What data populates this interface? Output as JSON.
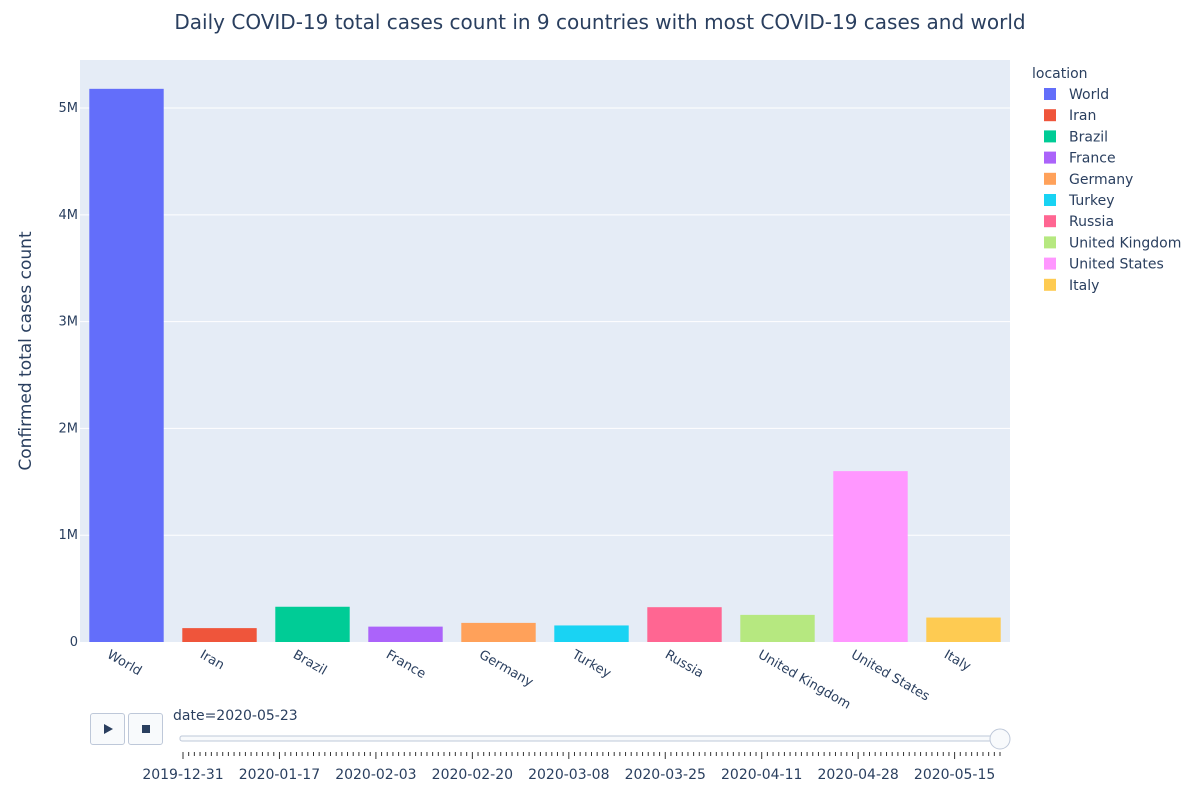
{
  "chart_data": {
    "type": "bar",
    "title": "Daily COVID-19 total cases count in 9 countries with most COVID-19 cases and world",
    "xlabel": "",
    "ylabel": "Confirmed total cases count",
    "categories": [
      "World",
      "Iran",
      "Brazil",
      "France",
      "Germany",
      "Turkey",
      "Russia",
      "United Kingdom",
      "United States",
      "Italy"
    ],
    "values": [
      5180000,
      130000,
      330000,
      144000,
      179000,
      155000,
      326000,
      254000,
      1600000,
      229000
    ],
    "colors": [
      "#636efa",
      "#EF553B",
      "#00cc96",
      "#ab63fa",
      "#FFA15A",
      "#19d3f3",
      "#FF6692",
      "#B6E880",
      "#FF97FF",
      "#FECB52"
    ],
    "ylim": [
      0,
      5450000
    ],
    "yticks": [
      0,
      1000000,
      2000000,
      3000000,
      4000000,
      5000000
    ],
    "ytick_labels": [
      "0",
      "1M",
      "2M",
      "3M",
      "4M",
      "5M"
    ],
    "grid": true,
    "legend": {
      "title": "location",
      "placement": "right",
      "entries": [
        "World",
        "Iran",
        "Brazil",
        "France",
        "Germany",
        "Turkey",
        "Russia",
        "United Kingdom",
        "United States",
        "Italy"
      ]
    }
  },
  "slider": {
    "current_label": "date=2020-05-23",
    "tick_labels": [
      "2019-12-31",
      "2020-01-17",
      "2020-02-03",
      "2020-02-20",
      "2020-03-08",
      "2020-03-25",
      "2020-04-11",
      "2020-04-28",
      "2020-05-15"
    ],
    "total_steps": 145,
    "current_step": 144,
    "label_every": 17
  },
  "controls": {
    "play_icon": "play-icon",
    "stop_icon": "stop-icon"
  }
}
